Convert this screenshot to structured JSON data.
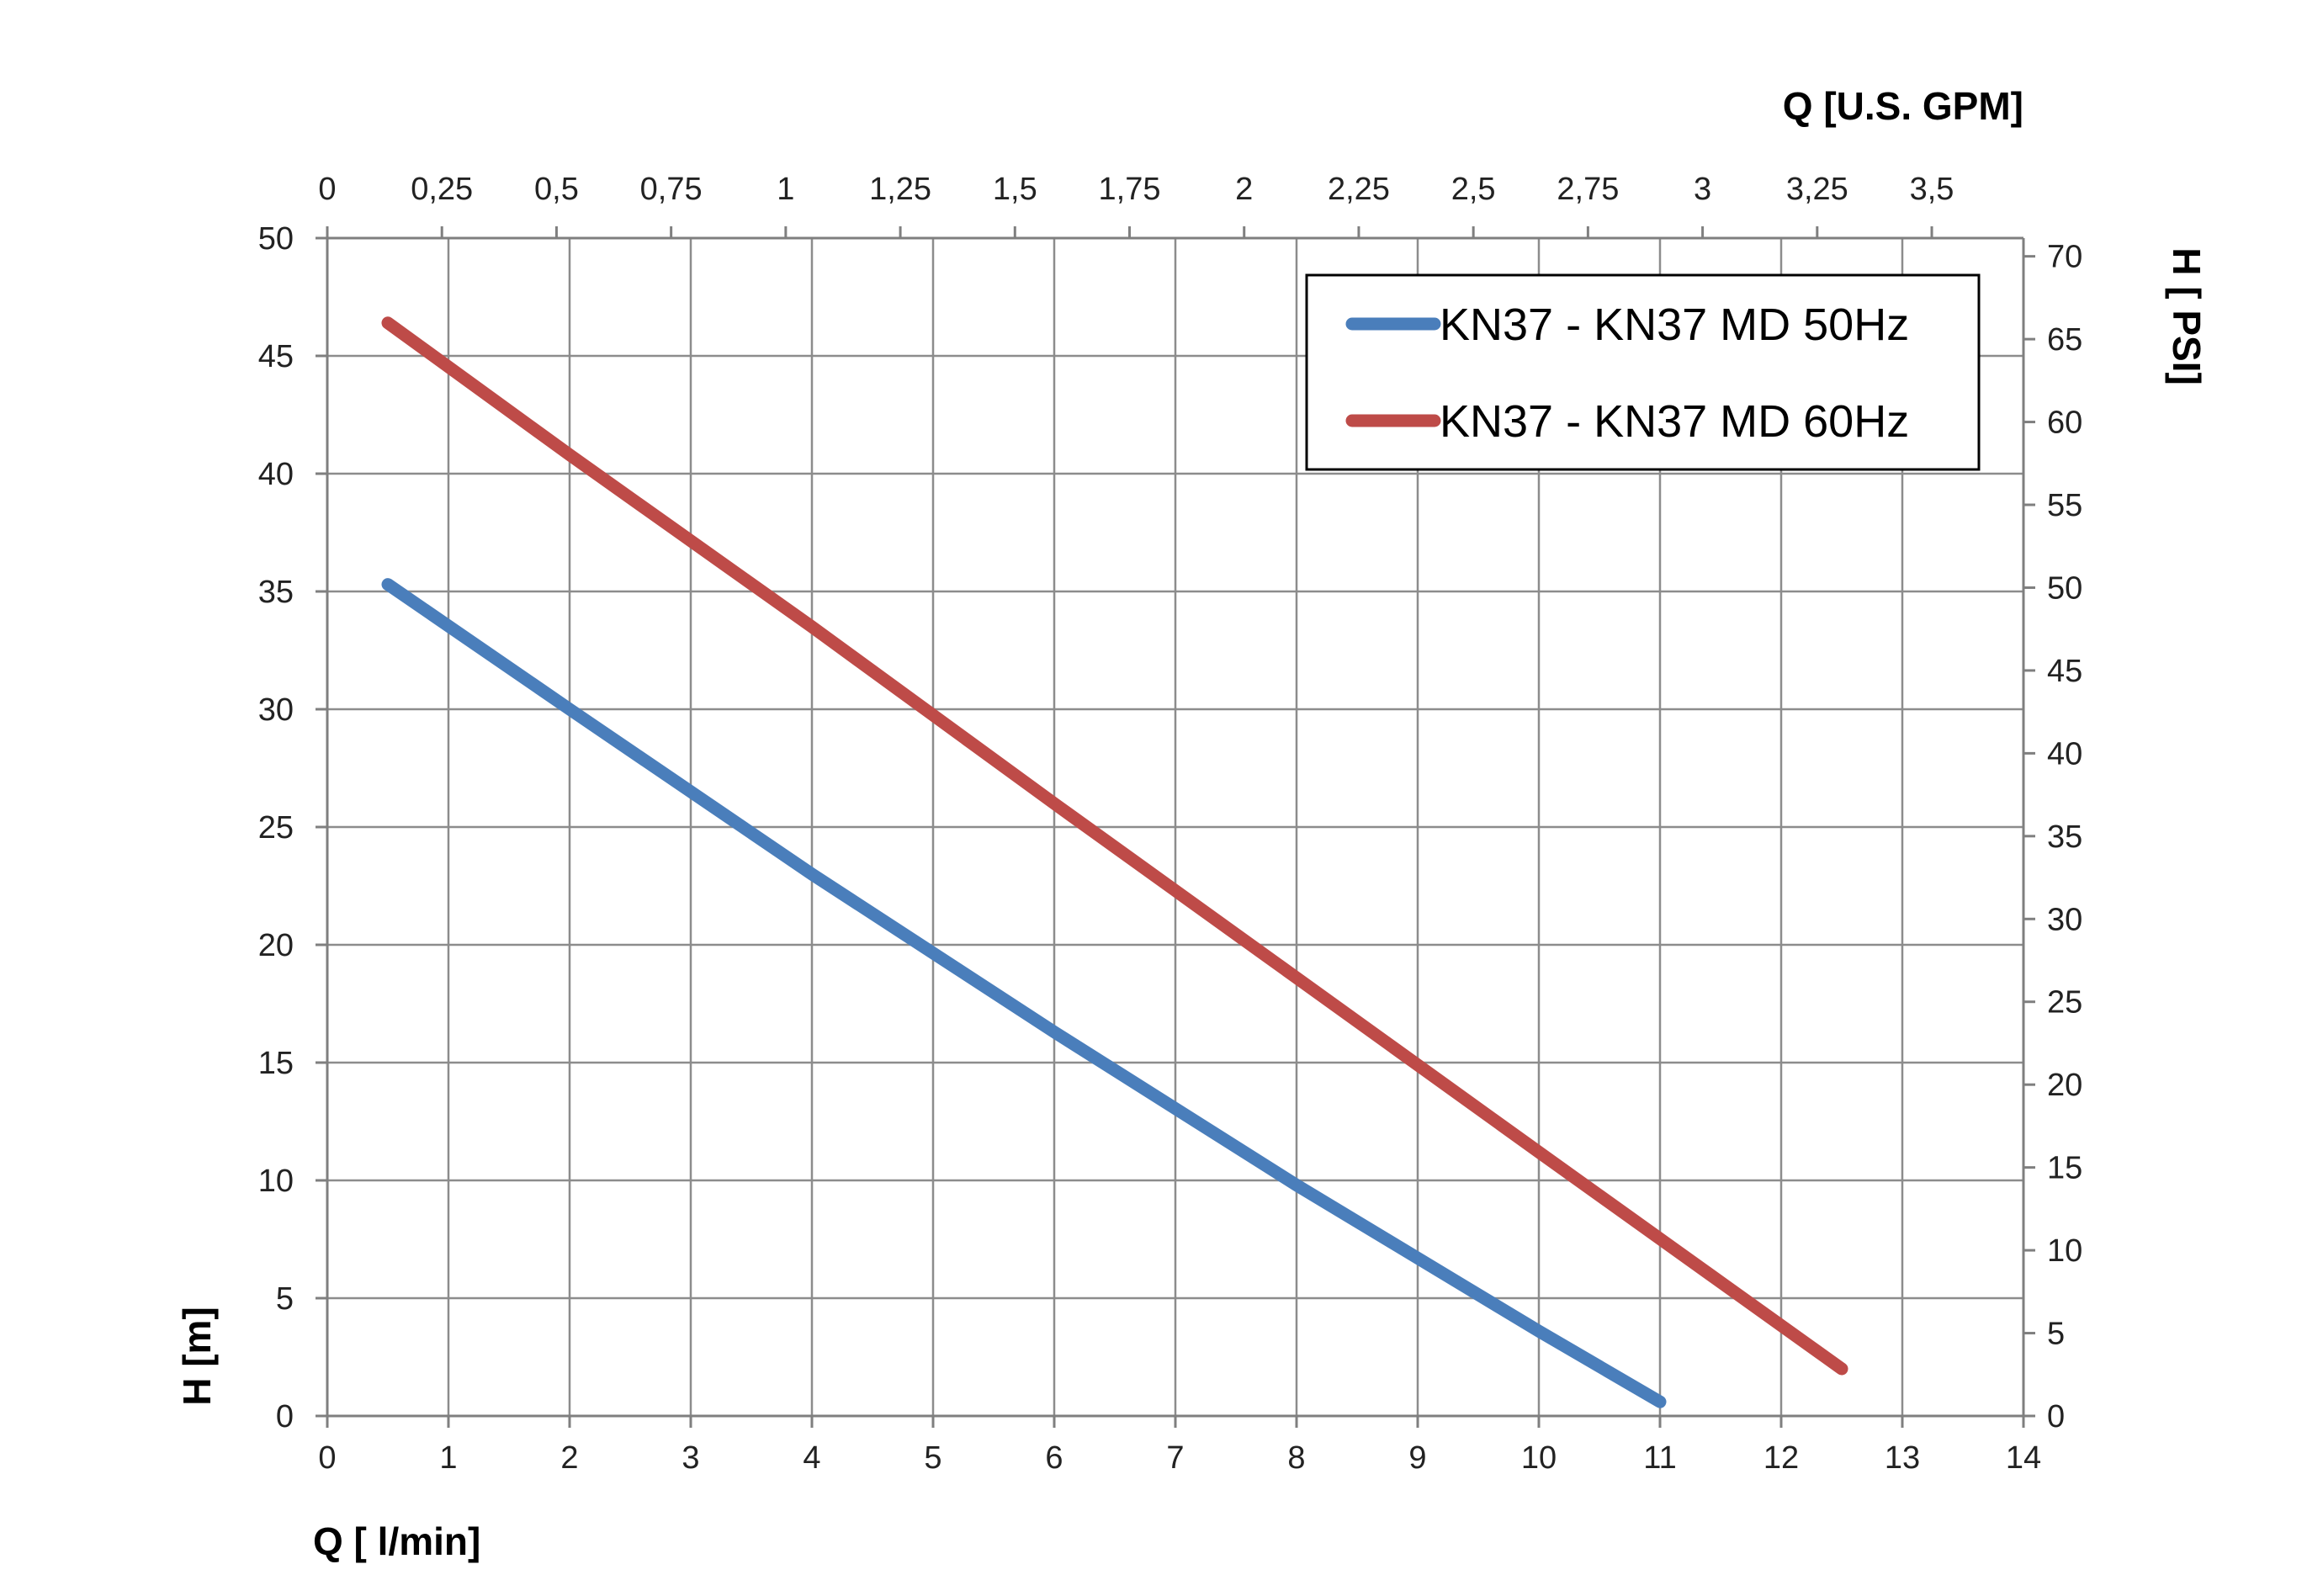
{
  "chart_data": {
    "type": "line",
    "x_label": "Q [ l/min]",
    "x2_label": "Q  [U.S. GPM]",
    "y_label": "H [m]",
    "y2_label": "H [ PSI]",
    "xlim": [
      0,
      14
    ],
    "ylim": [
      0,
      50
    ],
    "x2lim": [
      0,
      3.7
    ],
    "y2lim": [
      0,
      71.1
    ],
    "x_ticks": [
      "0",
      "1",
      "2",
      "3",
      "4",
      "5",
      "6",
      "7",
      "8",
      "9",
      "10",
      "11",
      "12",
      "13",
      "14"
    ],
    "y_ticks": [
      "0",
      "5",
      "10",
      "15",
      "20",
      "25",
      "30",
      "35",
      "40",
      "45",
      "50"
    ],
    "x2_ticks": [
      "0",
      "0,25",
      "0,5",
      "0,75",
      "1",
      "1,25",
      "1,5",
      "1,75",
      "2",
      "2,25",
      "2,5",
      "2,75",
      "3",
      "3,25",
      "3,5"
    ],
    "y2_ticks": [
      "0",
      "5",
      "10",
      "15",
      "20",
      "25",
      "30",
      "35",
      "40",
      "45",
      "50",
      "55",
      "60",
      "65",
      "70"
    ],
    "grid": true,
    "legend_position": "top-right",
    "series": [
      {
        "name": "KN37 - KN37 MD 50Hz",
        "color": "#4a7ebb",
        "points": [
          [
            0.5,
            35.3
          ],
          [
            2,
            30.0
          ],
          [
            4,
            23.0
          ],
          [
            6,
            16.3
          ],
          [
            8,
            9.8
          ],
          [
            10,
            3.6
          ],
          [
            11,
            0.6
          ]
        ]
      },
      {
        "name": "KN37 - KN37 MD 60Hz",
        "color": "#be4b48",
        "points": [
          [
            0.5,
            46.4
          ],
          [
            2,
            40.8
          ],
          [
            4,
            33.5
          ],
          [
            6,
            26.0
          ],
          [
            8,
            18.6
          ],
          [
            10,
            11.2
          ],
          [
            12.5,
            2.0
          ]
        ]
      }
    ]
  }
}
